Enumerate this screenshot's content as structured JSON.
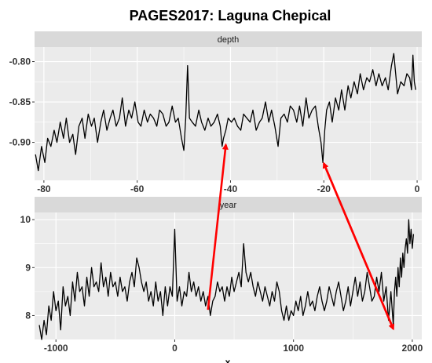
{
  "title": "PAGES2017: Laguna Chepical",
  "colors": {
    "panel_bg": "#EBEBEB",
    "strip_bg": "#D9D9D9",
    "gridline": "#FFFFFF",
    "series": "#000000",
    "arrow": "#FF0000"
  },
  "chart_data": [
    {
      "type": "line",
      "facet": "depth",
      "strip_label": "depth",
      "xlim": [
        -82,
        1
      ],
      "ylim": [
        -0.947,
        -0.782
      ],
      "x_ticks": [
        -80,
        -60,
        -40,
        -20,
        0
      ],
      "x_tick_labels": [
        "-80",
        "-60",
        "-40",
        "-20",
        "0"
      ],
      "y_ticks": [
        -0.8,
        -0.85,
        -0.9
      ],
      "y_tick_labels": [
        "-0.80",
        "-0.85",
        "-0.90"
      ],
      "grid": true,
      "series": [
        {
          "x": [
            -81.8,
            -81.2,
            -80.5,
            -79.8,
            -79.2,
            -78.5,
            -77.8,
            -77.2,
            -76.5,
            -75.8,
            -75.2,
            -74.5,
            -73.8,
            -73.2,
            -72.5,
            -71.8,
            -71.2,
            -70.5,
            -69.8,
            -69.2,
            -68.5,
            -67.8,
            -67.2,
            -66.5,
            -65.8,
            -65.2,
            -64.5,
            -63.8,
            -63.2,
            -62.5,
            -61.8,
            -61.2,
            -60.5,
            -59.8,
            -59.2,
            -58.5,
            -57.8,
            -57.2,
            -56.5,
            -55.8,
            -55.2,
            -54.5,
            -53.8,
            -53.2,
            -52.5,
            -51.8,
            -51.2,
            -50.5,
            -50.0,
            -49.6,
            -49.2,
            -48.8,
            -48.2,
            -47.5,
            -46.8,
            -46.2,
            -45.5,
            -44.8,
            -44.2,
            -43.5,
            -42.8,
            -42.2,
            -41.8,
            -41.5,
            -41.0,
            -40.5,
            -39.8,
            -39.2,
            -38.5,
            -37.8,
            -37.2,
            -36.5,
            -35.8,
            -35.2,
            -34.5,
            -33.8,
            -33.2,
            -32.5,
            -31.8,
            -31.2,
            -30.5,
            -29.8,
            -29.2,
            -28.5,
            -27.8,
            -27.2,
            -26.5,
            -25.8,
            -25.2,
            -24.5,
            -23.8,
            -23.2,
            -22.5,
            -21.8,
            -21.2,
            -20.6,
            -20.2,
            -19.8,
            -19.4,
            -18.8,
            -18.2,
            -17.5,
            -16.8,
            -16.2,
            -15.5,
            -14.8,
            -14.2,
            -13.5,
            -12.8,
            -12.2,
            -11.5,
            -10.8,
            -10.2,
            -9.5,
            -8.8,
            -8.2,
            -7.5,
            -6.8,
            -6.2,
            -5.5,
            -5.0,
            -4.6,
            -4.2,
            -3.5,
            -2.8,
            -2.2,
            -1.6,
            -1.2,
            -0.9,
            -0.6,
            -0.3
          ],
          "y": [
            -0.915,
            -0.935,
            -0.905,
            -0.925,
            -0.895,
            -0.905,
            -0.885,
            -0.9,
            -0.875,
            -0.895,
            -0.87,
            -0.9,
            -0.89,
            -0.915,
            -0.88,
            -0.87,
            -0.895,
            -0.865,
            -0.88,
            -0.87,
            -0.9,
            -0.875,
            -0.86,
            -0.885,
            -0.87,
            -0.86,
            -0.88,
            -0.87,
            -0.845,
            -0.88,
            -0.86,
            -0.87,
            -0.85,
            -0.875,
            -0.88,
            -0.86,
            -0.875,
            -0.865,
            -0.87,
            -0.88,
            -0.86,
            -0.865,
            -0.88,
            -0.875,
            -0.855,
            -0.875,
            -0.87,
            -0.895,
            -0.91,
            -0.87,
            -0.805,
            -0.87,
            -0.875,
            -0.88,
            -0.86,
            -0.875,
            -0.885,
            -0.87,
            -0.88,
            -0.875,
            -0.865,
            -0.88,
            -0.905,
            -0.895,
            -0.885,
            -0.87,
            -0.875,
            -0.87,
            -0.88,
            -0.885,
            -0.865,
            -0.87,
            -0.875,
            -0.86,
            -0.885,
            -0.875,
            -0.87,
            -0.85,
            -0.875,
            -0.86,
            -0.88,
            -0.905,
            -0.87,
            -0.865,
            -0.875,
            -0.855,
            -0.86,
            -0.875,
            -0.855,
            -0.88,
            -0.845,
            -0.87,
            -0.86,
            -0.855,
            -0.88,
            -0.9,
            -0.925,
            -0.885,
            -0.86,
            -0.85,
            -0.875,
            -0.845,
            -0.86,
            -0.835,
            -0.86,
            -0.83,
            -0.845,
            -0.825,
            -0.84,
            -0.815,
            -0.835,
            -0.82,
            -0.825,
            -0.81,
            -0.83,
            -0.815,
            -0.83,
            -0.82,
            -0.835,
            -0.805,
            -0.79,
            -0.815,
            -0.84,
            -0.825,
            -0.83,
            -0.815,
            -0.82,
            -0.835,
            -0.792,
            -0.825,
            -0.835
          ]
        }
      ]
    },
    {
      "type": "line",
      "facet": "year",
      "strip_label": "year",
      "xlim": [
        -1180,
        2080
      ],
      "ylim": [
        7.5,
        10.15
      ],
      "x_ticks": [
        -1000,
        0,
        1000,
        2000
      ],
      "x_tick_labels": [
        "-1000",
        "0",
        "1000",
        "2000"
      ],
      "y_ticks": [
        10,
        9,
        8
      ],
      "y_tick_labels": [
        "10",
        "9",
        "8"
      ],
      "grid": true,
      "series": [
        {
          "x": [
            -1140,
            -1120,
            -1100,
            -1080,
            -1060,
            -1040,
            -1020,
            -1000,
            -980,
            -960,
            -940,
            -920,
            -900,
            -880,
            -860,
            -840,
            -820,
            -800,
            -780,
            -760,
            -740,
            -720,
            -700,
            -680,
            -660,
            -640,
            -620,
            -600,
            -580,
            -560,
            -540,
            -520,
            -500,
            -480,
            -460,
            -440,
            -420,
            -400,
            -380,
            -360,
            -340,
            -320,
            -300,
            -280,
            -260,
            -240,
            -220,
            -200,
            -180,
            -160,
            -140,
            -120,
            -100,
            -80,
            -60,
            -40,
            -20,
            0,
            20,
            40,
            60,
            80,
            100,
            120,
            140,
            160,
            180,
            200,
            220,
            240,
            260,
            280,
            300,
            320,
            340,
            360,
            380,
            400,
            420,
            440,
            460,
            480,
            500,
            520,
            540,
            560,
            580,
            600,
            620,
            640,
            660,
            680,
            700,
            720,
            740,
            760,
            780,
            800,
            820,
            840,
            860,
            880,
            900,
            920,
            940,
            960,
            980,
            1000,
            1020,
            1040,
            1060,
            1080,
            1100,
            1120,
            1140,
            1160,
            1180,
            1200,
            1220,
            1240,
            1260,
            1280,
            1300,
            1320,
            1340,
            1360,
            1380,
            1400,
            1420,
            1440,
            1460,
            1480,
            1500,
            1520,
            1540,
            1560,
            1580,
            1600,
            1620,
            1640,
            1660,
            1680,
            1700,
            1720,
            1740,
            1760,
            1780,
            1800,
            1820,
            1840,
            1850,
            1860,
            1870,
            1880,
            1890,
            1900,
            1910,
            1920,
            1930,
            1940,
            1950,
            1960,
            1970,
            1980,
            1990,
            2000,
            2010
          ],
          "y": [
            7.8,
            7.5,
            7.9,
            7.6,
            8.2,
            7.9,
            8.5,
            8.1,
            8.3,
            7.7,
            8.6,
            8.2,
            8.4,
            8.0,
            8.7,
            8.3,
            8.9,
            8.5,
            8.6,
            8.2,
            8.8,
            8.4,
            9.0,
            8.6,
            8.7,
            8.5,
            9.1,
            8.6,
            8.8,
            8.4,
            8.9,
            8.6,
            8.7,
            8.4,
            8.8,
            8.5,
            8.6,
            8.3,
            8.7,
            8.9,
            8.6,
            9.2,
            9.0,
            8.7,
            8.5,
            8.7,
            8.3,
            8.5,
            8.2,
            8.7,
            8.3,
            8.5,
            8.0,
            8.6,
            8.2,
            8.6,
            8.4,
            9.8,
            8.3,
            8.6,
            8.2,
            8.5,
            8.4,
            8.9,
            8.5,
            8.7,
            8.4,
            8.6,
            8.3,
            8.5,
            8.2,
            8.4,
            8.0,
            8.3,
            8.4,
            8.7,
            8.5,
            8.6,
            8.3,
            8.6,
            8.4,
            8.8,
            8.5,
            8.7,
            8.9,
            8.6,
            9.5,
            8.9,
            8.7,
            8.9,
            8.6,
            8.4,
            8.7,
            8.5,
            8.3,
            8.6,
            8.4,
            8.2,
            8.5,
            8.3,
            8.7,
            8.5,
            8.1,
            7.9,
            8.2,
            7.9,
            8.1,
            8.0,
            8.3,
            8.1,
            8.4,
            8.0,
            8.2,
            8.5,
            8.2,
            8.3,
            8.1,
            8.4,
            8.6,
            8.3,
            8.1,
            8.3,
            8.6,
            8.4,
            8.2,
            8.5,
            8.7,
            8.4,
            8.1,
            8.3,
            8.6,
            8.2,
            8.5,
            8.8,
            8.4,
            8.7,
            8.3,
            8.5,
            8.9,
            8.6,
            8.3,
            8.4,
            8.8,
            8.5,
            8.9,
            8.3,
            8.6,
            7.9,
            8.5,
            7.8,
            8.5,
            8.8,
            8.4,
            9.0,
            8.6,
            9.2,
            8.8,
            9.3,
            9.0,
            9.4,
            9.6,
            9.3,
            10.0,
            9.5,
            9.8,
            9.4,
            9.7
          ]
        }
      ]
    }
  ],
  "arrows": [
    {
      "from": {
        "panel": 1,
        "x": 280,
        "y": 8.12
      },
      "to": {
        "panel": 0,
        "x": -41.0,
        "y": -0.903
      }
    },
    {
      "from": {
        "panel": 0,
        "x": -20.0,
        "y": -0.926
      },
      "to": {
        "panel": 1,
        "x": 1840,
        "y": 7.72
      }
    },
    {
      "from": {
        "panel": 1,
        "x": 1840,
        "y": 7.72
      },
      "to": {
        "panel": 0,
        "x": -20.0,
        "y": -0.926
      }
    }
  ],
  "axes": {
    "x_axis_label": "x"
  }
}
